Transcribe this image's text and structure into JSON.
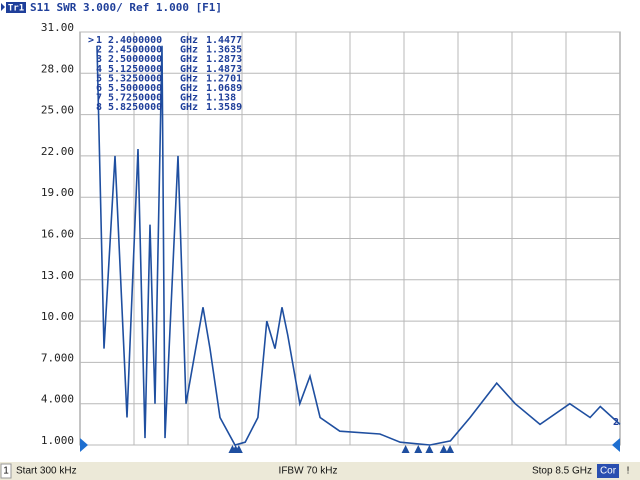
{
  "header": {
    "trace": "Tr1",
    "title": "S11 SWR 3.000/ Ref 1.000 [F1]"
  },
  "chart_data": {
    "type": "line",
    "color": "#1f4fa0",
    "grid": true,
    "xlim": [
      0.0003,
      8.5
    ],
    "ylim": [
      1,
      31
    ],
    "yticks": [
      {
        "value": 31,
        "label": "31.00"
      },
      {
        "value": 28,
        "label": "28.00"
      },
      {
        "value": 25,
        "label": "25.00"
      },
      {
        "value": 22,
        "label": "22.00"
      },
      {
        "value": 19,
        "label": "19.00"
      },
      {
        "value": 16,
        "label": "16.00"
      },
      {
        "value": 13,
        "label": "13.00"
      },
      {
        "value": 10,
        "label": "10.00"
      },
      {
        "value": 7,
        "label": "7.000"
      },
      {
        "value": 4,
        "label": "4.000"
      },
      {
        "value": 1,
        "label": "1.000"
      }
    ],
    "x": [
      0.268,
      0.378,
      0.551,
      0.74,
      0.913,
      1.023,
      1.102,
      1.181,
      1.291,
      1.338,
      1.543,
      1.669,
      1.936,
      2.046,
      2.204,
      2.44,
      2.6,
      2.8,
      2.94,
      3.07,
      3.18,
      3.27,
      3.46,
      3.62,
      3.78,
      4.09,
      4.72,
      5.04,
      5.51,
      5.83,
      6.14,
      6.56,
      6.85,
      7.24,
      7.71,
      8.03,
      8.19,
      8.5
    ],
    "values": [
      30,
      8,
      22,
      3,
      22.5,
      1.5,
      17,
      4,
      30,
      1.5,
      22,
      4,
      11,
      8,
      3,
      1,
      1.2,
      3,
      10,
      8,
      11,
      9,
      4,
      6,
      3,
      2,
      1.8,
      1.2,
      1,
      1.3,
      3,
      5.5,
      4,
      2.5,
      4,
      3,
      3.8,
      2.5
    ],
    "markers": [
      {
        "label": "1",
        "frequency": {
          "value": 2.4,
          "label": "2.4000000"
        },
        "unit": "GHz",
        "value": 1.4477
      },
      {
        "label": "2",
        "frequency": {
          "value": 2.45,
          "label": "2.4500000"
        },
        "unit": "GHz",
        "value": 1.3635
      },
      {
        "label": "3",
        "frequency": {
          "value": 2.5,
          "label": "2.5000000"
        },
        "unit": "GHz",
        "value": 1.2873
      },
      {
        "label": "4",
        "frequency": {
          "value": 5.125,
          "label": "5.1250000"
        },
        "unit": "GHz",
        "value": 1.4873
      },
      {
        "label": "5",
        "frequency": {
          "value": 5.325,
          "label": "5.3250000"
        },
        "unit": "GHz",
        "value": 1.2701
      },
      {
        "label": "6",
        "frequency": {
          "value": 5.5,
          "label": "5.5000000"
        },
        "unit": "GHz",
        "value": 1.0689
      },
      {
        "label": "7",
        "frequency": {
          "value": 5.725,
          "label": "5.7250000"
        },
        "unit": "GHz",
        "value": 1.138
      },
      {
        "label": "8",
        "frequency": {
          "value": 5.825,
          "label": "5.8250000"
        },
        "unit": "GHz",
        "value": 1.3589
      }
    ],
    "end_label": "2"
  },
  "footer": {
    "channel": "1",
    "start": "Start 300 kHz",
    "ifbw": "IFBW 70 kHz",
    "stop": "Stop 8.5 GHz",
    "correction": "Cor",
    "warning": "!"
  }
}
